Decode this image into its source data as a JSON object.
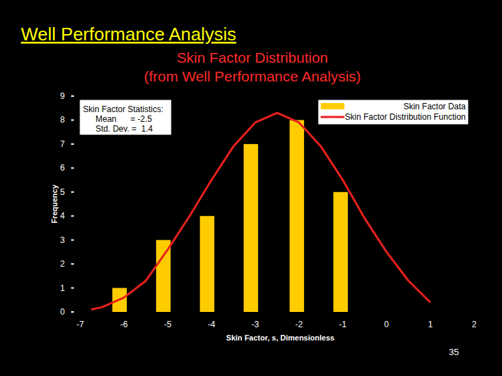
{
  "slide": {
    "title": "Well Performance Analysis",
    "page_number": "35"
  },
  "chart_data": {
    "type": "bar",
    "title": "Skin Factor Distribution",
    "subtitle": "(from Well Performance Analysis)",
    "x_label": "Skin Factor,   s, Dimensionless",
    "y_label": "Frequency",
    "annotations": [
      "Skin Factor Statistics:",
      "Mean      = -2.5",
      "Std. Dev. =  1.4"
    ],
    "xlim": [
      -7,
      2
    ],
    "xticks": [
      -7,
      -6,
      -5,
      -4,
      -3,
      -2,
      -1,
      0,
      1,
      2
    ],
    "ylim": [
      0,
      9
    ],
    "yticks": [
      0,
      1,
      2,
      3,
      4,
      5,
      6,
      7,
      8,
      9
    ],
    "legend": "upper right",
    "series": [
      {
        "name": "Skin Factor Data",
        "type": "bar",
        "color": "#ffcc00",
        "x": [
          -6.1,
          -5.1,
          -4.1,
          -3.1,
          -2.05,
          -1.05
        ],
        "values": [
          1,
          3,
          4,
          7,
          8,
          5
        ]
      },
      {
        "name": "Skin Factor Distribution Function",
        "type": "line",
        "color": "#e8201c",
        "x": [
          -6.75,
          -6.5,
          -6,
          -5.5,
          -5,
          -4.5,
          -4,
          -3.5,
          -3,
          -2.5,
          -2,
          -1.5,
          -1,
          -0.5,
          0,
          0.5,
          1
        ],
        "values": [
          0.1,
          0.2,
          0.6,
          1.3,
          2.6,
          4.0,
          5.5,
          6.9,
          7.9,
          8.3,
          7.9,
          6.9,
          5.5,
          3.9,
          2.5,
          1.3,
          0.4
        ]
      }
    ]
  }
}
